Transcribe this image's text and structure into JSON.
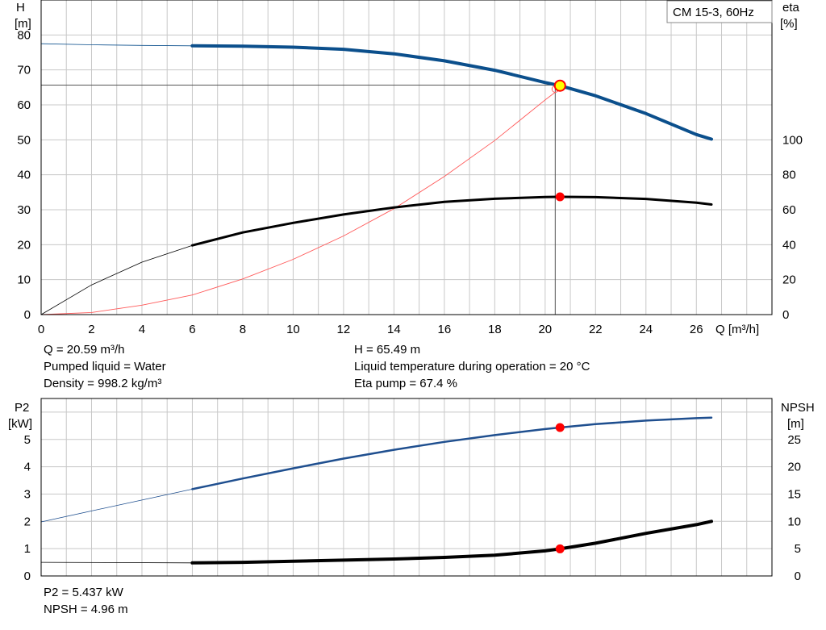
{
  "pump_label": "CM 15-3, 60Hz",
  "colors": {
    "head": "#0b4f8c",
    "power": "#1f4f8f",
    "eta": "#000000",
    "npsh": "#000000",
    "system": "#ff5a5a",
    "marker": "#ff0000",
    "duty": "#ffff00",
    "grid": "#c8c8c8"
  },
  "info": {
    "q": "Q = 20.59 m³/h",
    "liquid": "Pumped liquid = Water",
    "density": "Density = 998.2 kg/m³",
    "h": "H = 65.49 m",
    "temp": "Liquid temperature during operation = 20 °C",
    "eta": "Eta pump = 67.4 %",
    "p2": "P2 = 5.437 kW",
    "npsh": "NPSH = 4.96 m"
  },
  "chart_data": [
    {
      "type": "line",
      "title": "",
      "x_axis": {
        "label": "Q [m³/h]",
        "range": [
          0,
          29
        ],
        "ticks": [
          "0",
          "2",
          "4",
          "6",
          "8",
          "10",
          "12",
          "14",
          "16",
          "18",
          "20",
          "22",
          "24",
          "26"
        ]
      },
      "y_axis_left": {
        "label": "H",
        "unit": "[m]",
        "range": [
          0,
          90
        ],
        "ticks": [
          "0",
          "10",
          "20",
          "30",
          "40",
          "50",
          "60",
          "70",
          "80"
        ]
      },
      "y_axis_right": {
        "label": "eta",
        "unit": "[%]",
        "range": [
          0,
          180
        ],
        "ticks": [
          "0",
          "20",
          "40",
          "60",
          "80",
          "100"
        ]
      },
      "grid": true,
      "legend": "top-right",
      "series": [
        {
          "key": "head",
          "axis": "left",
          "x": [
            0,
            2,
            4,
            6,
            8,
            10,
            12,
            14,
            16,
            18,
            20,
            20.59,
            22,
            24,
            26,
            26.6
          ],
          "values": [
            77.5,
            77.2,
            77.0,
            76.9,
            76.8,
            76.5,
            75.9,
            74.6,
            72.6,
            69.9,
            66.4,
            65.5,
            62.6,
            57.5,
            51.5,
            50.2
          ]
        },
        {
          "key": "eta",
          "axis": "right",
          "x": [
            0,
            2,
            4,
            6,
            8,
            10,
            12,
            14,
            16,
            18,
            20,
            20.59,
            22,
            24,
            26,
            26.6
          ],
          "values": [
            0,
            17,
            30,
            39.6,
            47,
            52.5,
            57.3,
            61.3,
            64.5,
            66.3,
            67.3,
            67.4,
            67.2,
            66.2,
            64.0,
            63.0
          ]
        },
        {
          "key": "system",
          "axis": "left",
          "x": [
            0,
            2,
            4,
            6,
            8,
            10,
            12,
            14,
            16,
            18,
            20,
            20.4
          ],
          "values": [
            0,
            0.6,
            2.7,
            5.6,
            10.2,
            15.8,
            22.5,
            30.3,
            39.5,
            49.8,
            61.4,
            63.6
          ]
        }
      ],
      "duty_point": {
        "q": 20.59,
        "h": 65.49,
        "eta": 67.4
      },
      "operating_line": {
        "q": 20.4,
        "h": 64.5
      }
    },
    {
      "type": "line",
      "title": "",
      "x_axis": {
        "range": [
          0,
          29
        ]
      },
      "y_axis_left": {
        "label": "P2",
        "unit": "[kW]",
        "range": [
          0,
          6.5
        ],
        "ticks": [
          "0",
          "1",
          "2",
          "3",
          "4",
          "5"
        ]
      },
      "y_axis_right": {
        "label": "NPSH",
        "unit": "[m]",
        "range": [
          0,
          32.5
        ],
        "ticks": [
          "0",
          "5",
          "10",
          "15",
          "20",
          "25"
        ]
      },
      "grid": true,
      "series": [
        {
          "key": "power",
          "axis": "left",
          "x": [
            0,
            2,
            4,
            6,
            8,
            10,
            12,
            14,
            16,
            18,
            20,
            20.59,
            22,
            24,
            26,
            26.6
          ],
          "values": [
            1.98,
            2.38,
            2.78,
            3.18,
            3.57,
            3.94,
            4.3,
            4.62,
            4.91,
            5.16,
            5.38,
            5.437,
            5.56,
            5.69,
            5.78,
            5.8
          ]
        },
        {
          "key": "npsh",
          "axis": "right",
          "x": [
            0,
            6,
            8,
            10,
            12,
            14,
            16,
            18,
            20,
            20.59,
            22,
            24,
            26,
            26.6
          ],
          "values": [
            2.5,
            2.4,
            2.5,
            2.7,
            2.9,
            3.1,
            3.4,
            3.8,
            4.6,
            4.96,
            6.0,
            7.8,
            9.4,
            10.0
          ]
        }
      ],
      "markers": {
        "p2": 5.437,
        "npsh": 4.96,
        "q": 20.59
      }
    }
  ]
}
